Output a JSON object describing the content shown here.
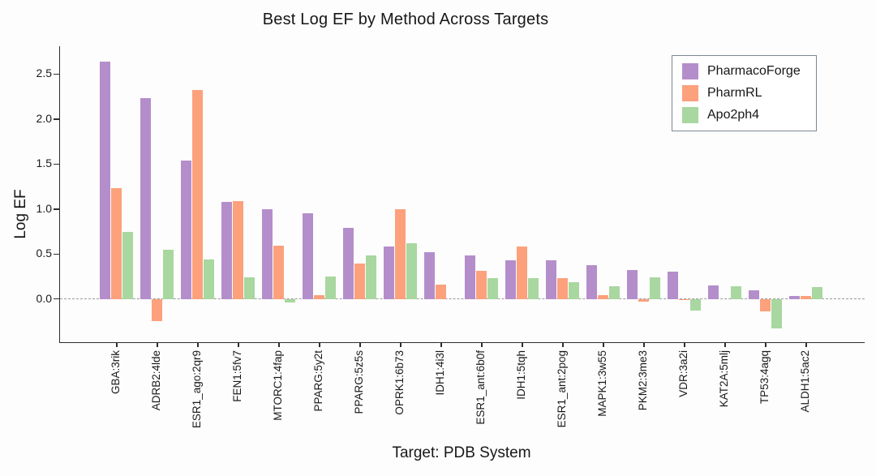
{
  "chart_data": {
    "type": "bar",
    "title": "Best Log EF by Method Across Targets",
    "xlabel": "Target: PDB System",
    "ylabel": "Log EF",
    "categories": [
      "GBA:3rik",
      "ADRB2:4lde",
      "ESR1_ago:2qr9",
      "FEN1:5fv7",
      "MTORC1:4fap",
      "PPARG:5y2t",
      "PPARG:5z5s",
      "OPRK1:6b73",
      "IDH1:4i3l",
      "ESR1_ant:6b0f",
      "IDH1:5tqh",
      "ESR1_ant:2pog",
      "MAPK1:3w55",
      "PKM2:3me3",
      "VDR:3a2i",
      "KAT2A:5mlj",
      "TP53:4agq",
      "ALDH1:5ac2"
    ],
    "series": [
      {
        "name": "PharmacoForge",
        "color": "#b48ecb",
        "values": [
          2.64,
          2.23,
          1.54,
          1.08,
          1.0,
          0.95,
          0.79,
          0.58,
          0.52,
          0.48,
          0.43,
          0.43,
          0.38,
          0.32,
          0.3,
          0.15,
          0.1,
          0.03
        ]
      },
      {
        "name": "PharmRL",
        "color": "#fca17c",
        "values": [
          1.23,
          -0.25,
          2.32,
          1.09,
          0.59,
          0.04,
          0.39,
          1.0,
          0.16,
          0.31,
          0.58,
          0.23,
          0.04,
          -0.03,
          -0.01,
          0.0,
          -0.14,
          0.03
        ]
      },
      {
        "name": "Apo2ph4",
        "color": "#a8d7a0",
        "values": [
          0.75,
          0.55,
          0.44,
          0.24,
          -0.04,
          0.25,
          0.48,
          0.62,
          0.0,
          0.23,
          0.23,
          0.19,
          0.14,
          0.24,
          -0.13,
          0.14,
          -0.33,
          0.13
        ]
      }
    ],
    "ylim": [
      -0.48,
      2.81
    ],
    "yticks": [
      0.0,
      0.5,
      1.0,
      1.5,
      2.0,
      2.5
    ],
    "zero_line": "dashed-gray",
    "grid": false,
    "legend_position": "upper right",
    "x_tick_rotation": 90
  },
  "colors": {
    "background": "#fdfdfd",
    "axis": "#2e2e2e",
    "zero_line": "#9b9b9b",
    "legend_border": "#7d8893",
    "text": "#171717"
  }
}
